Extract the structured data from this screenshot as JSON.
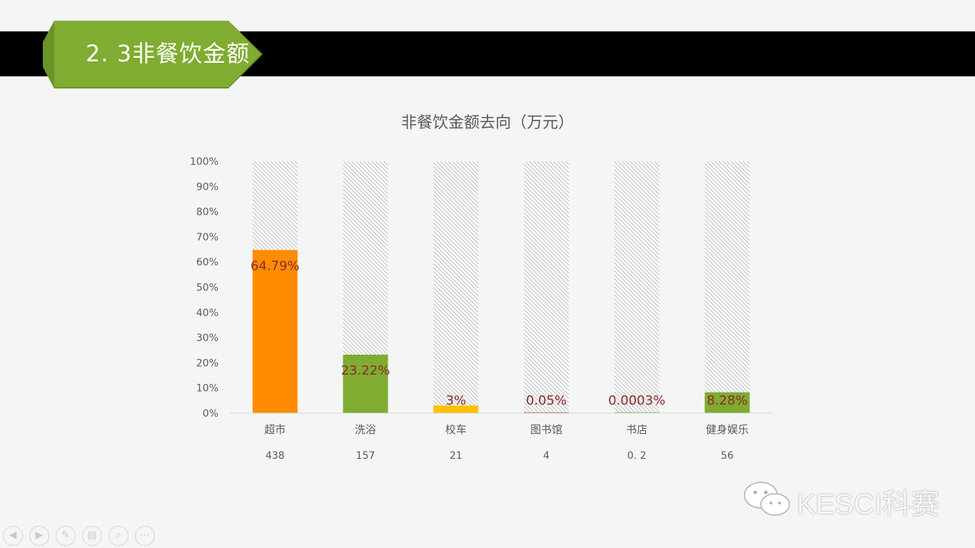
{
  "slide": {
    "title": "2. 3非餐饮金额",
    "watermark": "KESCI科赛"
  },
  "colors": {
    "header_bar": "#000000",
    "ribbon": "#7fac31",
    "orange": "#ff8c00",
    "green": "#7fac31",
    "yellow": "#ffc000",
    "red": "#c0504d",
    "label_text": "#8b2b2b",
    "hatch": "#a6a6a6"
  },
  "chart_data": {
    "type": "bar",
    "title": "非餐饮金额去向（万元）",
    "categories": [
      "超市",
      "洗浴",
      "校车",
      "图书馆",
      "书店",
      "健身娱乐"
    ],
    "amounts": [
      "438",
      "157",
      "21",
      "4",
      "0. 2",
      "56"
    ],
    "values": [
      64.79,
      23.22,
      3,
      0.05,
      0.0003,
      8.28
    ],
    "value_labels": [
      "64.79%",
      "23.22%",
      "3%",
      "0.05%",
      "0.0003%",
      "8.28%"
    ],
    "bar_colors": [
      "#ff8c00",
      "#7fac31",
      "#ffc000",
      "#c0504d",
      "#7fac31",
      "#7fac31"
    ],
    "background_fill": "hatched",
    "y_ticks": [
      "0%",
      "10%",
      "20%",
      "30%",
      "40%",
      "50%",
      "60%",
      "70%",
      "80%",
      "90%",
      "100%"
    ],
    "ylim": [
      0,
      100
    ],
    "grid": false,
    "legend": "none"
  },
  "nav": {
    "icons": [
      "prev-icon",
      "next-icon",
      "pen-icon",
      "slides-icon",
      "zoom-icon",
      "more-icon"
    ],
    "glyphs": [
      "◀",
      "▶",
      "✎",
      "▤",
      "⌕",
      "⋯"
    ]
  }
}
